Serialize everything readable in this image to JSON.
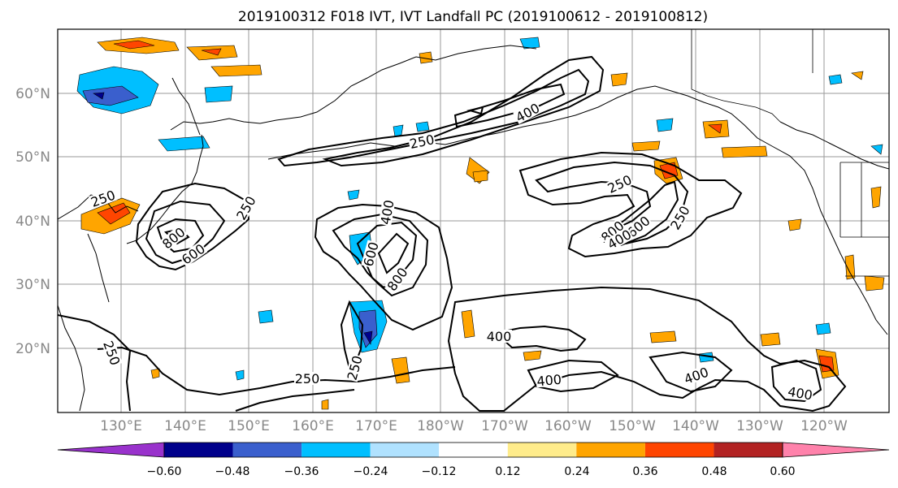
{
  "title": "2019100312 F018 IVT, IVT Landfall PC (2019100612 - 2019100812)",
  "map": {
    "lat_labels": [
      "60°N",
      "50°N",
      "40°N",
      "30°N",
      "20°N"
    ],
    "lon_labels": [
      "130°E",
      "140°E",
      "150°E",
      "160°E",
      "170°E",
      "180°W",
      "170°W",
      "160°W",
      "150°W",
      "140°W",
      "130°W",
      "120°W"
    ],
    "contour_labels": [
      "400",
      "250",
      "250",
      "250",
      "600",
      "800",
      "400",
      "600",
      "800",
      "250",
      "800",
      "600",
      "400",
      "250",
      "400",
      "250",
      "250",
      "250",
      "400",
      "400",
      "400"
    ]
  },
  "colorbar": {
    "colors": [
      "#9932cc",
      "#00008b",
      "#3a5fcd",
      "#00bfff",
      "#b0e2ff",
      "#ffffff",
      "#ffec8b",
      "#ffa500",
      "#ff4500",
      "#b22222",
      "#ff82ab"
    ],
    "tick_labels": [
      "−0.60",
      "−0.48",
      "−0.36",
      "−0.24",
      "−0.12",
      "0.12",
      "0.24",
      "0.36",
      "0.48",
      "0.60"
    ]
  }
}
